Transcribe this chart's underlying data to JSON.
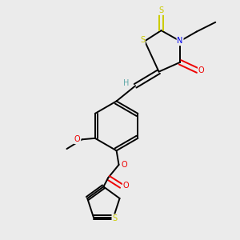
{
  "bg_color": "#ebebeb",
  "atom_colors": {
    "H": "#5fa8a8",
    "N": "#0000ee",
    "O": "#ee0000",
    "S": "#cccc00"
  },
  "lw": 1.4
}
